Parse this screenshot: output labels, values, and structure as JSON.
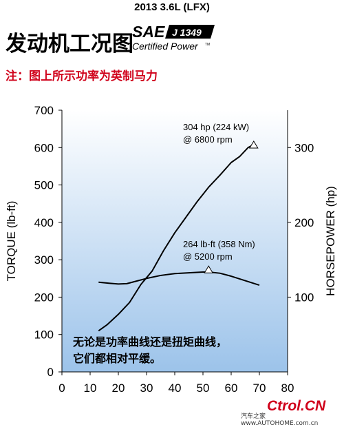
{
  "header": {
    "model": "2013 3.6L (LFX)",
    "title": "发动机工况图",
    "note": "注：图上所示功率为英制马力"
  },
  "logo": {
    "sae": "SAE",
    "standard": "J 1349",
    "certified": "Certified Power",
    "tm": "TM"
  },
  "colors": {
    "plot_top": "#ffffff",
    "plot_bottom": "#9cc3ea",
    "curve": "#000000",
    "note": "#d0021b"
  },
  "watermark": {
    "brand": "Ctrol.CN",
    "site": "汽车之家  www.AUTOHOME.com.cn"
  },
  "chart_data": {
    "type": "line",
    "title": "",
    "xlabel": "",
    "ylabel": "TORQUE (lb-ft)",
    "ylabel_right": "HORSEPOWER (hp)",
    "xlim": [
      0,
      80
    ],
    "ylim": [
      0,
      700
    ],
    "ylim_right": [
      0,
      350
    ],
    "x_ticks": [
      "0",
      "10",
      "20",
      "30",
      "40",
      "50",
      "60",
      "70",
      "80"
    ],
    "y_ticks": [
      "0",
      "100",
      "200",
      "300",
      "400",
      "500",
      "600",
      "700"
    ],
    "y_ticks_right": [
      "100",
      "200",
      "300"
    ],
    "grid": false,
    "series": [
      {
        "axis": "right",
        "x": [
          13,
          16,
          20,
          24,
          28,
          32,
          36,
          40,
          44,
          48,
          52,
          56,
          60,
          63,
          66,
          68
        ],
        "y": [
          55,
          63,
          77,
          93,
          117,
          135,
          162,
          186,
          207,
          228,
          247,
          263,
          280,
          288,
          300,
          304
        ]
      },
      {
        "axis": "left",
        "x": [
          13,
          17,
          20,
          23,
          26,
          30,
          35,
          40,
          45,
          50,
          52,
          56,
          60,
          65,
          70
        ],
        "y": [
          240,
          237,
          235,
          236,
          242,
          250,
          258,
          263,
          265,
          267,
          267,
          264,
          256,
          244,
          232
        ]
      }
    ],
    "annotations": [
      {
        "text": "304 hp (224 kW)",
        "text2": "@ 6800 rpm",
        "x": 68,
        "y": 304,
        "axis": "right"
      },
      {
        "text": "264 lb-ft (358 Nm)",
        "text2": "@ 5200 rpm",
        "x": 52,
        "y": 274,
        "axis": "left"
      }
    ],
    "caption_line1": "无论是功率曲线还是扭矩曲线，",
    "caption_line2": "它们都相对平缓。"
  }
}
